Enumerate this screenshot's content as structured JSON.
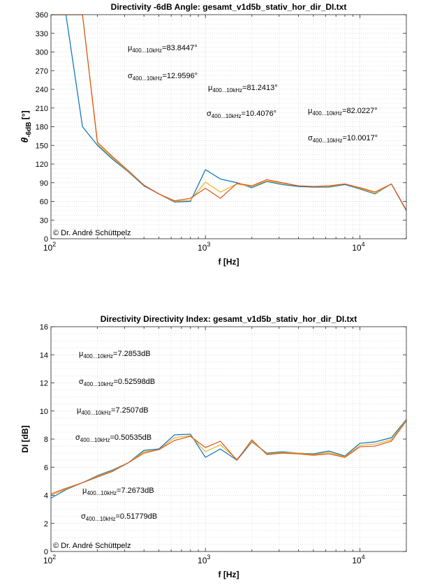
{
  "colors": {
    "series1": "#0072BD",
    "series2": "#D95319",
    "series3": "#EDB120"
  },
  "chart_data": [
    {
      "type": "line",
      "title": "Directivity -6dB Angle: gesamt_v1d5b_stativ_hor_dir_DI.txt",
      "xlabel": "f [Hz]",
      "ylabel_main": "θ",
      "ylabel_sub": "-6dB",
      "ylabel_unit": " [°]",
      "xscale": "log",
      "xlim": [
        100,
        20000
      ],
      "ylim": [
        0,
        360
      ],
      "yticks": [
        0,
        30,
        60,
        90,
        120,
        150,
        180,
        210,
        240,
        270,
        300,
        330,
        360
      ],
      "xticks": [
        {
          "value": 100,
          "base": "10",
          "exp": "2"
        },
        {
          "value": 1000,
          "base": "10",
          "exp": "3"
        },
        {
          "value": 10000,
          "base": "10",
          "exp": "4"
        }
      ],
      "grid": true,
      "x": [
        100,
        125,
        160,
        200,
        250,
        315,
        400,
        500,
        630,
        800,
        1000,
        1250,
        1600,
        2000,
        2500,
        3150,
        4000,
        5000,
        6300,
        8000,
        10000,
        12500,
        16000,
        20000
      ],
      "series": [
        {
          "values": [
            360,
            360,
            180,
            150,
            128,
            108,
            85,
            72,
            59,
            60,
            111,
            96,
            90,
            82,
            92,
            87,
            84,
            83,
            83,
            87,
            80,
            72,
            88,
            45
          ]
        },
        {
          "values": [
            360,
            360,
            360,
            155,
            132,
            110,
            86,
            72,
            61,
            65,
            81,
            65,
            89,
            85,
            95,
            90,
            85,
            84,
            85,
            88,
            82,
            75,
            88,
            46
          ]
        },
        {
          "values": [
            360,
            360,
            360,
            152,
            130,
            109,
            86,
            72,
            60,
            62,
            91,
            75,
            88,
            84,
            93,
            89,
            85,
            84,
            84,
            88,
            81,
            73,
            88,
            46
          ]
        }
      ],
      "annotations": [
        {
          "sym": "μ",
          "sub": "400...10kHz",
          "val": "=83.8447°"
        },
        {
          "sym": "σ",
          "sub": "400...10kHz",
          "val": "=12.9596°"
        },
        {
          "sym": "μ",
          "sub": "400...10kHz",
          "val": "=81.2413°"
        },
        {
          "sym": "σ",
          "sub": "400...10kHz",
          "val": "=10.4076°"
        },
        {
          "sym": "μ",
          "sub": "400...10kHz",
          "val": "=82.0227°"
        },
        {
          "sym": "σ",
          "sub": "400...10kHz",
          "val": "=10.0017°"
        }
      ],
      "copyright": "©  Dr. André Schüttpelz"
    },
    {
      "type": "line",
      "title": "Directivity Directivity Index: gesamt_v1d5b_stativ_hor_dir_DI.txt",
      "xlabel": "f [Hz]",
      "ylabel": "DI [dB]",
      "xscale": "log",
      "xlim": [
        100,
        20000
      ],
      "ylim": [
        0,
        16
      ],
      "yticks": [
        0,
        2,
        4,
        6,
        8,
        10,
        12,
        14,
        16
      ],
      "xticks": [
        {
          "value": 100,
          "base": "10",
          "exp": "2"
        },
        {
          "value": 1000,
          "base": "10",
          "exp": "3"
        },
        {
          "value": 10000,
          "base": "10",
          "exp": "4"
        }
      ],
      "grid": true,
      "x": [
        100,
        125,
        160,
        200,
        250,
        315,
        400,
        500,
        630,
        800,
        1000,
        1250,
        1600,
        2000,
        2500,
        3150,
        4000,
        5000,
        6300,
        8000,
        10000,
        12500,
        16000,
        20000
      ],
      "series": [
        {
          "values": [
            3.8,
            4.4,
            4.9,
            5.4,
            5.8,
            6.3,
            7.2,
            7.3,
            8.3,
            8.35,
            6.7,
            7.3,
            6.5,
            7.8,
            7.0,
            7.1,
            7.0,
            6.95,
            7.15,
            6.8,
            7.7,
            7.8,
            8.1,
            9.4
          ]
        },
        {
          "values": [
            4.1,
            4.5,
            4.9,
            5.3,
            5.7,
            6.3,
            7.0,
            7.25,
            7.9,
            8.2,
            7.4,
            7.85,
            6.5,
            7.95,
            6.9,
            7.0,
            6.95,
            6.85,
            6.95,
            6.7,
            7.45,
            7.5,
            7.85,
            9.3
          ]
        },
        {
          "values": [
            4.0,
            4.45,
            4.9,
            5.35,
            5.75,
            6.3,
            7.1,
            7.25,
            8.1,
            8.25,
            7.1,
            7.6,
            6.55,
            7.85,
            6.95,
            7.05,
            7.0,
            6.9,
            7.05,
            6.75,
            7.55,
            7.65,
            7.95,
            9.35
          ]
        }
      ],
      "annotations": [
        {
          "sym": "μ",
          "sub": "400...10kHz",
          "val": "=7.2853dB"
        },
        {
          "sym": "σ",
          "sub": "400...10kHz",
          "val": "=0.52598dB"
        },
        {
          "sym": "μ",
          "sub": "400...10kHz",
          "val": "=7.2507dB"
        },
        {
          "sym": "σ",
          "sub": "400...10kHz",
          "val": "=0.50535dB"
        },
        {
          "sym": "μ",
          "sub": "400...10kHz",
          "val": "=7.2673dB"
        },
        {
          "sym": "σ",
          "sub": "400...10kHz",
          "val": "=0.51779dB"
        }
      ],
      "copyright": "©  Dr. André Schüttpelz"
    }
  ]
}
